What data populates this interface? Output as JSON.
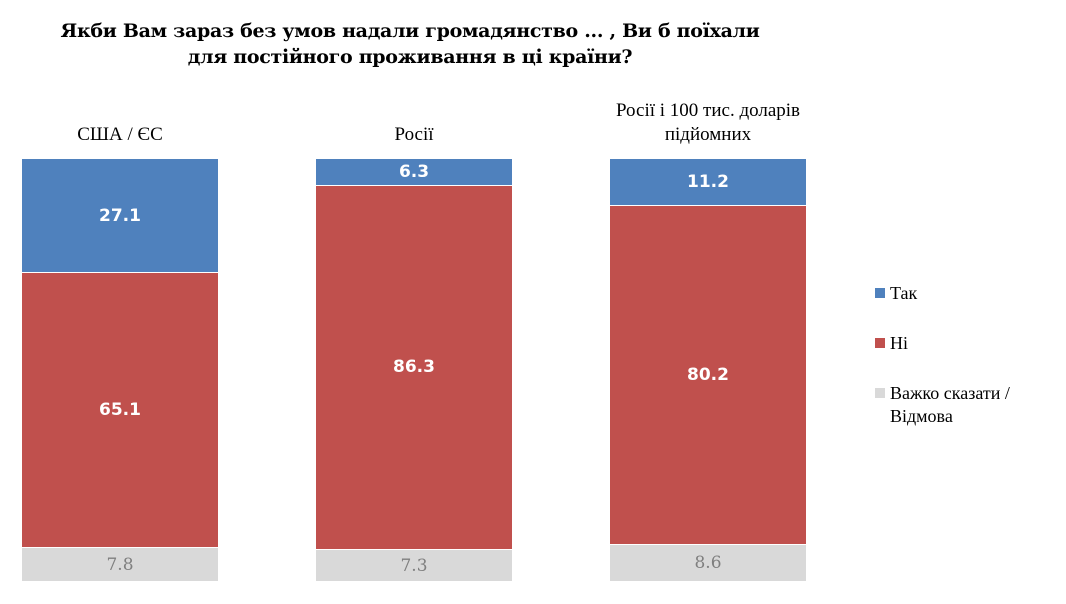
{
  "chart_data": {
    "type": "bar",
    "stacked": true,
    "title": "Якби Вам зараз без умов надали громадянство ... , Ви б поїхали для постійного проживання в ці країни?",
    "title_lines": [
      "Якби Вам зараз без умов надали громадянство ... , Ви б поїхали",
      "для постійного проживання в ці країни?"
    ],
    "categories": [
      "США / ЄС",
      "Росії",
      "Росії і 100 тис. доларів підйомних"
    ],
    "category_lines": [
      [
        "США / ЄС"
      ],
      [
        "Росії"
      ],
      [
        "Росії і 100 тис. доларів",
        "підйомних"
      ]
    ],
    "series": [
      {
        "name": "Так",
        "color": "#4f81bd",
        "values": [
          27.1,
          6.3,
          11.2
        ]
      },
      {
        "name": "Ні",
        "color": "#c0504d",
        "values": [
          65.1,
          86.3,
          80.2
        ]
      },
      {
        "name": "Важко сказати / Відмова",
        "color": "#d9d9d9",
        "values": [
          7.8,
          7.3,
          8.6
        ]
      }
    ],
    "legend_lines": [
      [
        "Так"
      ],
      [
        "Ні"
      ],
      [
        "Важко сказати /",
        "Відмова"
      ]
    ],
    "legend_position": "right",
    "ylim": [
      0,
      100
    ],
    "grid": false
  }
}
